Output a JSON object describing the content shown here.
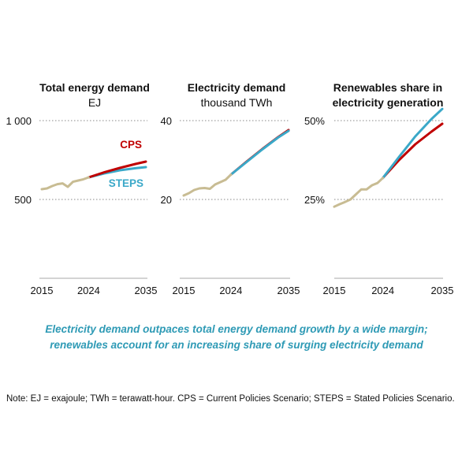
{
  "colors": {
    "history": "#c8bc93",
    "CPS": "#c00000",
    "STEPS": "#3aa8c8",
    "grid": "#888888",
    "axis": "#bbbbbb"
  },
  "chart_data": [
    {
      "type": "line",
      "title": "Total energy demand",
      "subtitle": "EJ",
      "xticks": [
        "2015",
        "2024",
        "2035"
      ],
      "yticks": [
        "1 000",
        "500"
      ],
      "ytick_values": [
        1000,
        500
      ],
      "ylim": [
        0,
        1000
      ],
      "xlim": [
        2015,
        2035
      ],
      "grid": "horizontal dotted",
      "history": {
        "x": [
          2015,
          2016,
          2017,
          2018,
          2019,
          2020,
          2021,
          2022,
          2023,
          2024
        ],
        "y": [
          565,
          570,
          585,
          597,
          602,
          580,
          612,
          620,
          628,
          640
        ]
      },
      "series": [
        {
          "name": "CPS",
          "x": [
            2024,
            2027,
            2030,
            2033,
            2035
          ],
          "y": [
            640,
            672,
            700,
            725,
            740
          ]
        },
        {
          "name": "STEPS",
          "x": [
            2024,
            2027,
            2030,
            2033,
            2035
          ],
          "y": [
            640,
            665,
            685,
            698,
            705
          ]
        }
      ],
      "labels": [
        {
          "text": "CPS",
          "series": "CPS"
        },
        {
          "text": "STEPS",
          "series": "STEPS"
        }
      ]
    },
    {
      "type": "line",
      "title": "Electricity demand",
      "subtitle": "thousand TWh",
      "xticks": [
        "2015",
        "2024",
        "2035"
      ],
      "yticks": [
        "40",
        "20"
      ],
      "ytick_values": [
        40,
        20
      ],
      "ylim": [
        0,
        40
      ],
      "xlim": [
        2015,
        2035
      ],
      "grid": "horizontal dotted",
      "history": {
        "x": [
          2015,
          2016,
          2017,
          2018,
          2019,
          2020,
          2021,
          2022,
          2023,
          2024
        ],
        "y": [
          21.0,
          21.6,
          22.4,
          22.8,
          22.9,
          22.7,
          23.8,
          24.4,
          25.0,
          26.3
        ]
      },
      "series": [
        {
          "name": "CPS",
          "x": [
            2024,
            2027,
            2030,
            2033,
            2035
          ],
          "y": [
            26.3,
            29.6,
            32.8,
            35.8,
            37.6
          ]
        },
        {
          "name": "STEPS",
          "x": [
            2024,
            2027,
            2030,
            2033,
            2035
          ],
          "y": [
            26.3,
            29.5,
            32.7,
            35.7,
            37.4
          ]
        }
      ]
    },
    {
      "type": "line",
      "title": "Renewables share in electricity generation",
      "subtitle": "",
      "xticks": [
        "2015",
        "2024",
        "2035"
      ],
      "yticks": [
        "50%",
        "25%"
      ],
      "ytick_values": [
        50,
        25
      ],
      "ylim": [
        0,
        50
      ],
      "xlim": [
        2015,
        2035
      ],
      "grid": "horizontal dotted",
      "history": {
        "x": [
          2015,
          2016,
          2017,
          2018,
          2019,
          2020,
          2021,
          2022,
          2023,
          2024
        ],
        "y": [
          22.7,
          23.5,
          24.2,
          25.0,
          26.6,
          28.2,
          28.2,
          29.5,
          30.2,
          31.8
        ]
      },
      "series": [
        {
          "name": "CPS",
          "x": [
            2024,
            2027,
            2030,
            2033,
            2035
          ],
          "y": [
            31.8,
            37.5,
            42.5,
            46.5,
            49.0
          ]
        },
        {
          "name": "STEPS",
          "x": [
            2024,
            2027,
            2030,
            2033,
            2035
          ],
          "y": [
            31.8,
            38.5,
            45.0,
            50.5,
            53.7
          ]
        }
      ]
    }
  ],
  "caption": [
    "Electricity demand outpaces total energy demand growth by a wide margin;",
    "renewables account for an increasing share of surging electricity demand"
  ],
  "note": "Note: EJ = exajoule; TWh = terawatt-hour. CPS = Current Policies Scenario; STEPS = Stated Policies Scenario."
}
